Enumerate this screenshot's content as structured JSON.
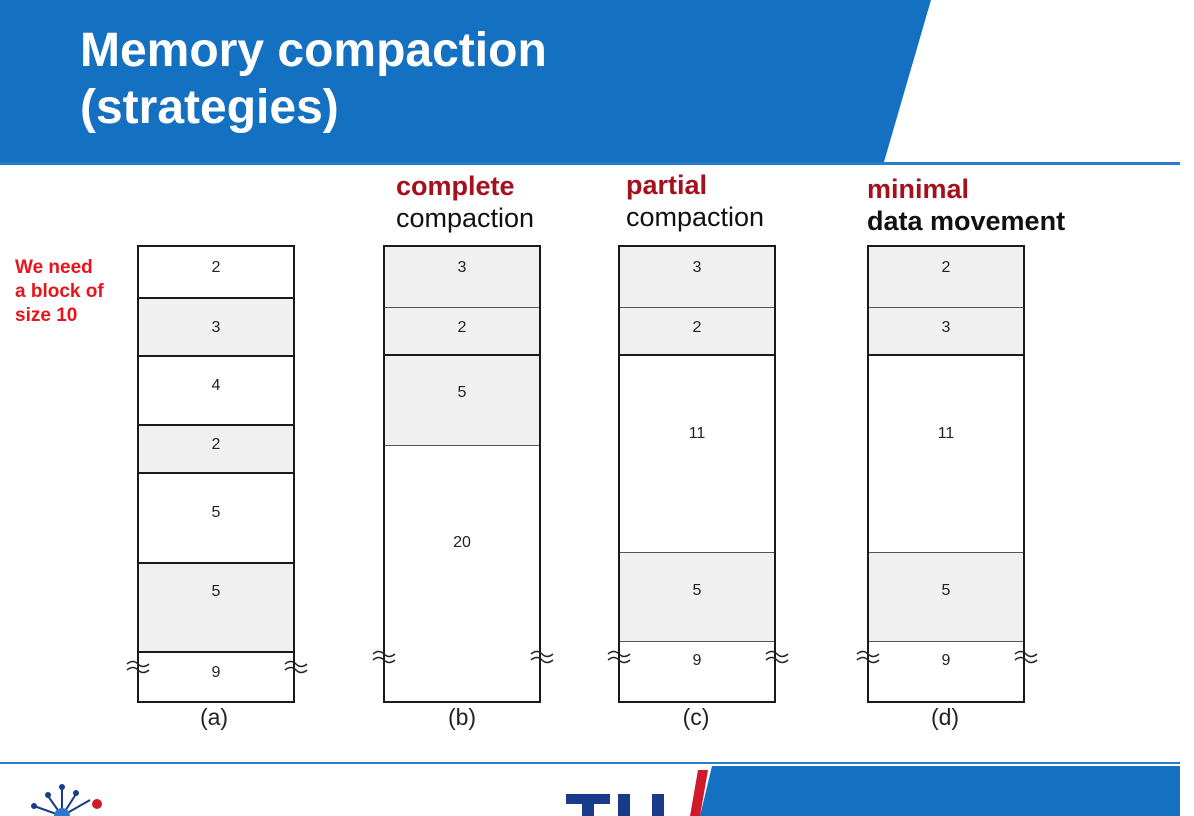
{
  "title": {
    "line1": "Memory compaction",
    "line2": "(strategies)"
  },
  "note": {
    "line1": "We need",
    "line2": "a block of",
    "line3": "size 10"
  },
  "columns": {
    "a": {
      "label": "(a)",
      "blocks": [
        "2",
        "3",
        "4",
        "2",
        "5",
        "5",
        "9"
      ]
    },
    "b": {
      "keyword": "complete",
      "rest": "compaction",
      "label": "(b)",
      "blocks": [
        "3",
        "2",
        "5",
        "20"
      ]
    },
    "c": {
      "keyword": "partial",
      "rest": "compaction",
      "label": "(c)",
      "blocks": [
        "3",
        "2",
        "11",
        "5",
        "9"
      ]
    },
    "d": {
      "keyword": "minimal",
      "rest": "data movement",
      "label": "(d)",
      "blocks": [
        "2",
        "3",
        "11",
        "5",
        "9"
      ]
    }
  },
  "colors": {
    "header_blue": "#1470c0",
    "keyword_red": "#a4101b",
    "note_red": "#e8141b",
    "used_fill": "#f0f0f0"
  }
}
